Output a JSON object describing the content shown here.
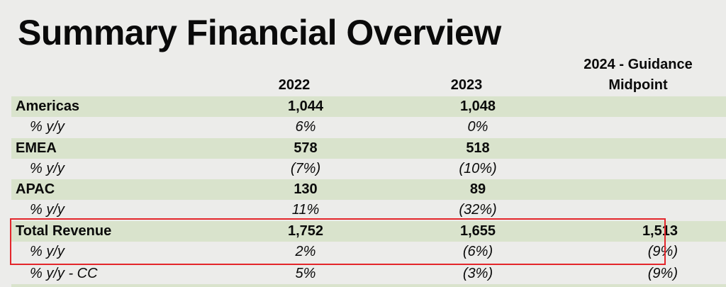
{
  "title": "Summary Financial Overview",
  "columns": {
    "y2022": "2022",
    "y2023": "2023",
    "y2024_line1": "2024 - Guidance",
    "y2024_line2": "Midpoint"
  },
  "rows": [
    {
      "label": "Americas",
      "v2022": "1,044",
      "v2023": "1,048",
      "v2024": ""
    },
    {
      "label": "% y/y",
      "v2022": "6%",
      "v2023": "0%",
      "v2024": ""
    },
    {
      "label": "EMEA",
      "v2022": "578",
      "v2023": "518",
      "v2024": ""
    },
    {
      "label": "% y/y",
      "v2022": "(7%)",
      "v2023": "(10%)",
      "v2024": ""
    },
    {
      "label": "APAC",
      "v2022": "130",
      "v2023": "89",
      "v2024": ""
    },
    {
      "label": "% y/y",
      "v2022": "11%",
      "v2023": "(32%)",
      "v2024": ""
    },
    {
      "label": "Total Revenue",
      "v2022": "1,752",
      "v2023": "1,655",
      "v2024": "1,513"
    },
    {
      "label": "% y/y",
      "v2022": "2%",
      "v2023": "(6%)",
      "v2024": "(9%)"
    },
    {
      "label": "% y/y - CC",
      "v2022": "5%",
      "v2023": "(3%)",
      "v2024": "(9%)"
    }
  ],
  "colors": {
    "row_shade": "#d9e3cc",
    "highlight_border": "#e3262b",
    "background": "#ececea"
  }
}
